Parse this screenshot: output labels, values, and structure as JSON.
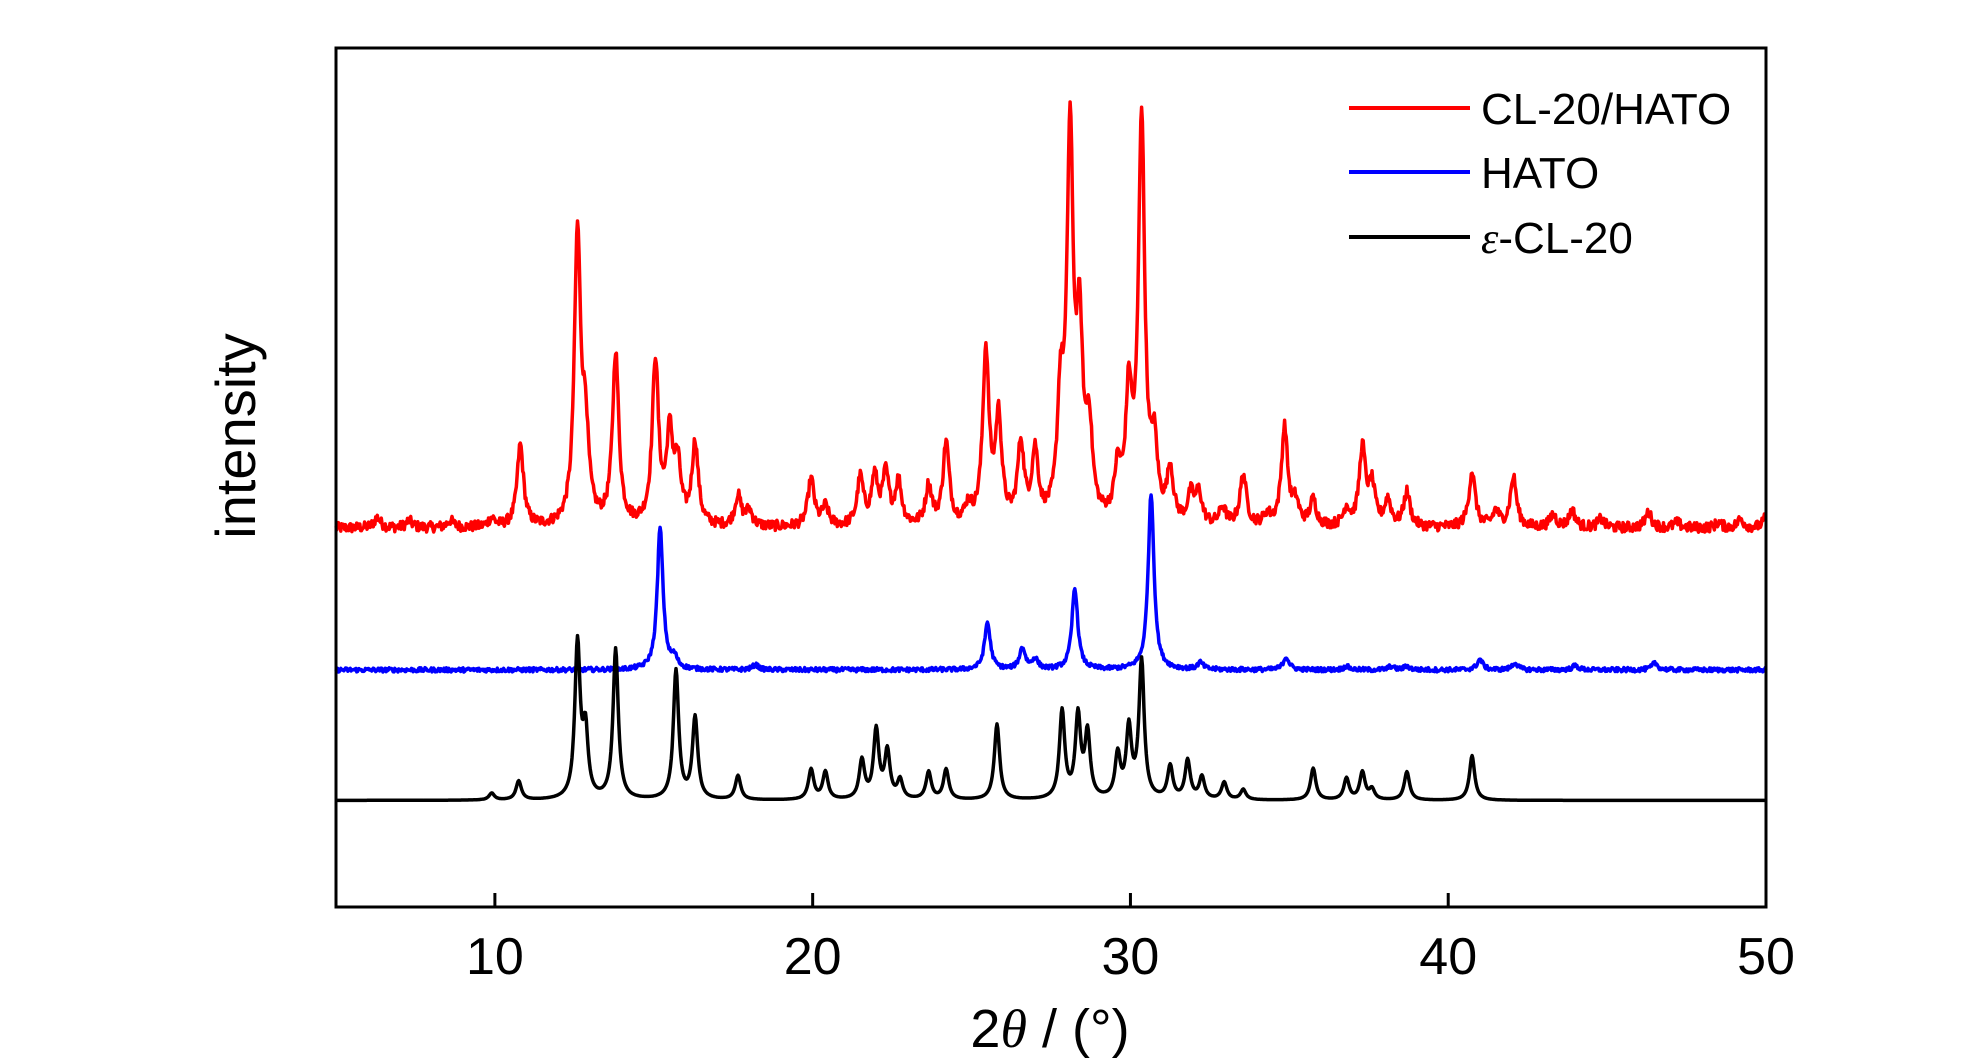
{
  "chart_data": {
    "type": "line",
    "xlabel_prefix": "2",
    "xlabel_theta": "θ",
    "xlabel_suffix": " / (°)",
    "ylabel": "intensity",
    "xlim": [
      5,
      50
    ],
    "ylim": [
      0,
      1
    ],
    "x_ticks": [
      10,
      20,
      30,
      40,
      50
    ],
    "y_ticks_shown": false,
    "grid": false,
    "legend_position": "top-right",
    "series": [
      {
        "name": "CL-20/HATO",
        "color": "#ff0000",
        "baseline": 0.441,
        "noise": 0.006,
        "width": 0.12,
        "peaks": [
          [
            6.3,
            0.012
          ],
          [
            7.3,
            0.008
          ],
          [
            8.6,
            0.008
          ],
          [
            9.9,
            0.01
          ],
          [
            10.8,
            0.095
          ],
          [
            12.6,
            0.335
          ],
          [
            12.85,
            0.1
          ],
          [
            13.8,
            0.2
          ],
          [
            15.05,
            0.19
          ],
          [
            15.5,
            0.1
          ],
          [
            15.75,
            0.065
          ],
          [
            16.3,
            0.095
          ],
          [
            17.65,
            0.035
          ],
          [
            18.0,
            0.018
          ],
          [
            19.95,
            0.055
          ],
          [
            20.4,
            0.022
          ],
          [
            21.5,
            0.055
          ],
          [
            21.95,
            0.055
          ],
          [
            22.3,
            0.058
          ],
          [
            22.7,
            0.05
          ],
          [
            23.65,
            0.045
          ],
          [
            24.2,
            0.095
          ],
          [
            24.9,
            0.02
          ],
          [
            25.45,
            0.2
          ],
          [
            25.85,
            0.12
          ],
          [
            26.55,
            0.09
          ],
          [
            27.0,
            0.08
          ],
          [
            27.8,
            0.13
          ],
          [
            28.1,
            0.44
          ],
          [
            28.4,
            0.2
          ],
          [
            28.7,
            0.1
          ],
          [
            29.6,
            0.055
          ],
          [
            29.95,
            0.14
          ],
          [
            30.35,
            0.47
          ],
          [
            30.75,
            0.08
          ],
          [
            31.25,
            0.06
          ],
          [
            31.9,
            0.032
          ],
          [
            32.15,
            0.035
          ],
          [
            32.9,
            0.02
          ],
          [
            33.55,
            0.06
          ],
          [
            34.3,
            0.012
          ],
          [
            34.85,
            0.115
          ],
          [
            35.2,
            0.025
          ],
          [
            35.75,
            0.03
          ],
          [
            36.8,
            0.02
          ],
          [
            37.3,
            0.09
          ],
          [
            37.6,
            0.045
          ],
          [
            38.1,
            0.03
          ],
          [
            38.7,
            0.04
          ],
          [
            40.75,
            0.065
          ],
          [
            41.5,
            0.018
          ],
          [
            42.05,
            0.058
          ],
          [
            43.3,
            0.015
          ],
          [
            43.9,
            0.02
          ],
          [
            44.8,
            0.01
          ],
          [
            46.3,
            0.018
          ],
          [
            47.2,
            0.006
          ],
          [
            48.5,
            0.006
          ],
          [
            49.2,
            0.01
          ],
          [
            50.0,
            0.012
          ]
        ]
      },
      {
        "name": "HATO",
        "color": "#0000ff",
        "baseline": 0.276,
        "noise": 0.0025,
        "width": 0.11,
        "peaks": [
          [
            15.2,
            0.165
          ],
          [
            15.65,
            0.012
          ],
          [
            18.2,
            0.006
          ],
          [
            25.5,
            0.055
          ],
          [
            26.6,
            0.025
          ],
          [
            27.0,
            0.012
          ],
          [
            28.25,
            0.095
          ],
          [
            30.65,
            0.205
          ],
          [
            32.2,
            0.008
          ],
          [
            34.9,
            0.015
          ],
          [
            36.8,
            0.004
          ],
          [
            38.2,
            0.004
          ],
          [
            38.7,
            0.004
          ],
          [
            41.0,
            0.012
          ],
          [
            42.1,
            0.008
          ],
          [
            44.0,
            0.005
          ],
          [
            46.5,
            0.008
          ]
        ]
      },
      {
        "name": "ε-CL-20",
        "color": "#000000",
        "baseline": 0.124,
        "noise": 0.0,
        "width": 0.1,
        "peaks": [
          [
            9.9,
            0.008
          ],
          [
            10.75,
            0.022
          ],
          [
            12.6,
            0.18
          ],
          [
            12.85,
            0.075
          ],
          [
            13.8,
            0.175
          ],
          [
            15.7,
            0.15
          ],
          [
            16.3,
            0.095
          ],
          [
            17.65,
            0.028
          ],
          [
            19.95,
            0.035
          ],
          [
            20.4,
            0.032
          ],
          [
            21.55,
            0.045
          ],
          [
            22.0,
            0.08
          ],
          [
            22.35,
            0.055
          ],
          [
            22.75,
            0.022
          ],
          [
            23.65,
            0.032
          ],
          [
            24.2,
            0.035
          ],
          [
            25.8,
            0.088
          ],
          [
            27.85,
            0.102
          ],
          [
            28.35,
            0.095
          ],
          [
            28.65,
            0.075
          ],
          [
            29.6,
            0.05
          ],
          [
            29.95,
            0.08
          ],
          [
            30.35,
            0.16
          ],
          [
            31.25,
            0.038
          ],
          [
            31.8,
            0.045
          ],
          [
            32.25,
            0.026
          ],
          [
            32.95,
            0.02
          ],
          [
            33.55,
            0.012
          ],
          [
            35.75,
            0.037
          ],
          [
            36.8,
            0.025
          ],
          [
            37.3,
            0.032
          ],
          [
            37.6,
            0.012
          ],
          [
            38.7,
            0.033
          ],
          [
            40.75,
            0.052
          ]
        ]
      }
    ],
    "legend": [
      {
        "label": "CL-20/HATO",
        "color": "#ff0000"
      },
      {
        "label": "HATO",
        "color": "#0000ff"
      },
      {
        "label_italic": "ε",
        "label_rest": "-CL-20",
        "color": "#000000"
      }
    ]
  }
}
